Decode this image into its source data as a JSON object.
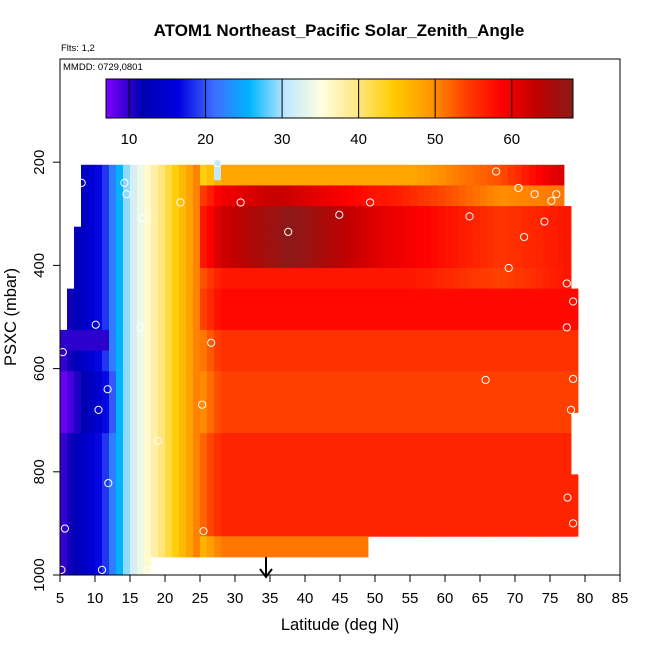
{
  "chart_data": {
    "type": "heatmap",
    "title": "ATOM1 Northeast_Pacific Solar_Zenith_Angle",
    "notes": {
      "flights": "Flts: 1,2",
      "dates": "MMDD: 0729,0801"
    },
    "xlabel": "Latitude (deg N)",
    "ylabel": "PSXC (mbar)",
    "xlim": [
      5,
      85
    ],
    "ylim": [
      1000,
      0
    ],
    "x_ticks": [
      "5",
      "10",
      "15",
      "20",
      "25",
      "30",
      "35",
      "40",
      "45",
      "50",
      "55",
      "60",
      "65",
      "70",
      "75",
      "80",
      "85"
    ],
    "y_ticks": [
      "200",
      "400",
      "600",
      "800",
      "1000"
    ],
    "colorbar": {
      "range": [
        7,
        68
      ],
      "ticks": [
        "10",
        "20",
        "30",
        "40",
        "50",
        "60"
      ],
      "palette": [
        "#7f00ff",
        "#0000b0",
        "#0000e0",
        "#3f6cff",
        "#00b4ff",
        "#bfe8ff",
        "#ffffe0",
        "#ffe680",
        "#ffcc00",
        "#ff9900",
        "#ff4000",
        "#ff0000",
        "#c00000",
        "#8b1a1a"
      ]
    },
    "marker": {
      "latitude": 35,
      "style": "down-arrow"
    },
    "grid_step": {
      "latitude": 1,
      "pressure": 40
    },
    "rows": [
      {
        "p": [
          205,
          245
        ],
        "lat": [
          8,
          77
        ]
      },
      {
        "p": [
          245,
          285
        ],
        "lat": [
          8,
          77
        ]
      },
      {
        "p": [
          285,
          325
        ],
        "lat": [
          8,
          78
        ]
      },
      {
        "p": [
          325,
          365
        ],
        "lat": [
          7,
          78
        ]
      },
      {
        "p": [
          365,
          405
        ],
        "lat": [
          7,
          78
        ]
      },
      {
        "p": [
          405,
          445
        ],
        "lat": [
          7,
          78
        ]
      },
      {
        "p": [
          445,
          485
        ],
        "lat": [
          6,
          79
        ]
      },
      {
        "p": [
          485,
          525
        ],
        "lat": [
          6,
          79
        ]
      },
      {
        "p": [
          525,
          565
        ],
        "lat": [
          5,
          79
        ]
      },
      {
        "p": [
          565,
          605
        ],
        "lat": [
          5,
          79
        ]
      },
      {
        "p": [
          605,
          645
        ],
        "lat": [
          5,
          79
        ]
      },
      {
        "p": [
          645,
          685
        ],
        "lat": [
          5,
          79
        ]
      },
      {
        "p": [
          685,
          725
        ],
        "lat": [
          5,
          78
        ]
      },
      {
        "p": [
          725,
          765
        ],
        "lat": [
          5,
          78
        ]
      },
      {
        "p": [
          765,
          805
        ],
        "lat": [
          5,
          78
        ]
      },
      {
        "p": [
          805,
          845
        ],
        "lat": [
          5,
          79
        ]
      },
      {
        "p": [
          845,
          885
        ],
        "lat": [
          5,
          79
        ]
      },
      {
        "p": [
          885,
          925
        ],
        "lat": [
          5,
          79
        ]
      },
      {
        "p": [
          925,
          965
        ],
        "lat": [
          5,
          49
        ]
      },
      {
        "p": [
          965,
          1000
        ],
        "lat": [
          5,
          18
        ]
      }
    ],
    "isolated_cell": {
      "lat": [
        27,
        28
      ],
      "p": [
        195,
        235
      ]
    },
    "points": [
      {
        "lat": 8.1,
        "p": 240
      },
      {
        "lat": 14.2,
        "p": 240
      },
      {
        "lat": 14.5,
        "p": 262
      },
      {
        "lat": 16.8,
        "p": 308
      },
      {
        "lat": 22.2,
        "p": 278
      },
      {
        "lat": 27.5,
        "p": 202
      },
      {
        "lat": 30.8,
        "p": 278
      },
      {
        "lat": 37.6,
        "p": 335
      },
      {
        "lat": 44.9,
        "p": 302
      },
      {
        "lat": 49.3,
        "p": 278
      },
      {
        "lat": 63.5,
        "p": 305
      },
      {
        "lat": 67.3,
        "p": 218
      },
      {
        "lat": 70.5,
        "p": 250
      },
      {
        "lat": 71.3,
        "p": 345
      },
      {
        "lat": 72.8,
        "p": 262
      },
      {
        "lat": 74.2,
        "p": 315
      },
      {
        "lat": 75.2,
        "p": 275
      },
      {
        "lat": 75.9,
        "p": 262
      },
      {
        "lat": 69.1,
        "p": 405
      },
      {
        "lat": 77.4,
        "p": 435
      },
      {
        "lat": 78.3,
        "p": 470
      },
      {
        "lat": 77.4,
        "p": 520
      },
      {
        "lat": 78.3,
        "p": 620
      },
      {
        "lat": 78.0,
        "p": 680
      },
      {
        "lat": 77.5,
        "p": 850
      },
      {
        "lat": 78.3,
        "p": 900
      },
      {
        "lat": 10.1,
        "p": 515
      },
      {
        "lat": 11.8,
        "p": 640
      },
      {
        "lat": 10.5,
        "p": 680
      },
      {
        "lat": 5.4,
        "p": 568
      },
      {
        "lat": 11.9,
        "p": 822
      },
      {
        "lat": 5.7,
        "p": 910
      },
      {
        "lat": 5.2,
        "p": 990
      },
      {
        "lat": 11.0,
        "p": 990
      },
      {
        "lat": 17.5,
        "p": 990
      },
      {
        "lat": 19.0,
        "p": 740
      },
      {
        "lat": 16.5,
        "p": 520
      },
      {
        "lat": 25.3,
        "p": 670
      },
      {
        "lat": 26.6,
        "p": 550
      },
      {
        "lat": 25.5,
        "p": 915
      },
      {
        "lat": 65.8,
        "p": 622
      }
    ]
  }
}
